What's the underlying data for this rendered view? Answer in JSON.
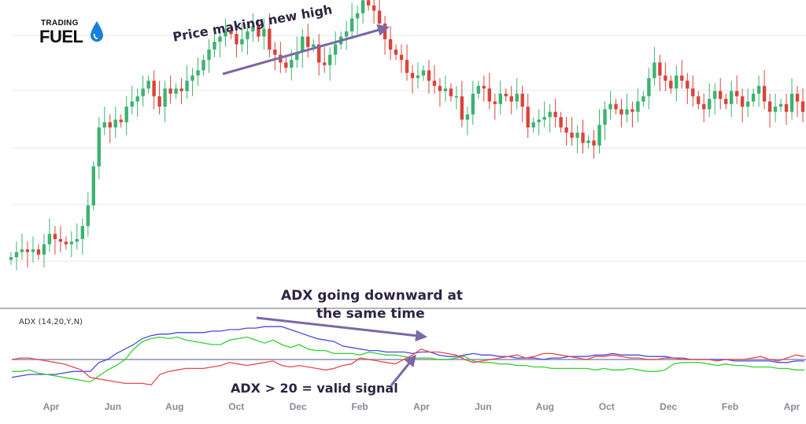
{
  "logo": {
    "line1": "TRADING",
    "line2": "FUEL",
    "icon": "water-drop-icon"
  },
  "annotations": {
    "price": "Price making new high",
    "adx_line1": "ADX going downward at",
    "adx_line2": "the same time",
    "valid": "ADX > 20 = valid signal"
  },
  "colors": {
    "up": "#3cb371",
    "down": "#d9443b",
    "adx": "#4a4ae0",
    "plus_di": "#e84a4a",
    "minus_di": "#33d133",
    "threshold": "#8c8cb3",
    "arrow": "#7b68a6"
  },
  "chart_data": [
    {
      "type": "candlestick",
      "title": "",
      "x_ticks": [
        "Apr",
        "Jun",
        "Aug",
        "Oct",
        "Dec",
        "Feb",
        "Apr",
        "Jun",
        "Aug",
        "Oct",
        "Dec",
        "Feb",
        "Apr"
      ],
      "y_range": [
        0,
        100
      ],
      "grid": true,
      "close": [
        10,
        12,
        13,
        12,
        13,
        11,
        15,
        19,
        17,
        16,
        15,
        16,
        17,
        22,
        30,
        45,
        60,
        62,
        60,
        63,
        62,
        68,
        70,
        72,
        75,
        78,
        72,
        68,
        75,
        73,
        75,
        74,
        78,
        80,
        82,
        86,
        90,
        93,
        95,
        97,
        96,
        92,
        94,
        97,
        99,
        95,
        98,
        90,
        88,
        85,
        83,
        86,
        89,
        95,
        91,
        92,
        85,
        84,
        88,
        92,
        95,
        97,
        102,
        104,
        109,
        107,
        105,
        100,
        94,
        90,
        88,
        86,
        81,
        79,
        80,
        82,
        78,
        76,
        74,
        75,
        72,
        72,
        63,
        65,
        73,
        76,
        75,
        70,
        69,
        73,
        72,
        70,
        73,
        68,
        60,
        62,
        63,
        64,
        66,
        64,
        60,
        58,
        56,
        58,
        54,
        55,
        53,
        61,
        67,
        69,
        67,
        65,
        67,
        66,
        70,
        72,
        79,
        85,
        80,
        78,
        75,
        80,
        78,
        75,
        72,
        69,
        67,
        71,
        74,
        71,
        69,
        74,
        72,
        68,
        70,
        73,
        76,
        70,
        66,
        68,
        69,
        66,
        73,
        70,
        66
      ]
    },
    {
      "type": "line",
      "title": "",
      "label": "ADX (14,20,Y,N)",
      "threshold": 20,
      "y_range": [
        0,
        50
      ],
      "series": [
        {
          "values": [
            8,
            9,
            10,
            10,
            10,
            10,
            11,
            12,
            12,
            12,
            18,
            20,
            24,
            27,
            30,
            34,
            36,
            37,
            37,
            38,
            38,
            38,
            38,
            39,
            39,
            40,
            40,
            41,
            41,
            42,
            42,
            42,
            40,
            38,
            36,
            34,
            33,
            32,
            29,
            28,
            27,
            26,
            26,
            25,
            25,
            25,
            24,
            25,
            25,
            23,
            22,
            22,
            23,
            24,
            23,
            23,
            22,
            22,
            21,
            21,
            21,
            20,
            21,
            21,
            22,
            22,
            22,
            23,
            23,
            24,
            23,
            23,
            23,
            22,
            22,
            22,
            21,
            21,
            20,
            20,
            20,
            20,
            20,
            19,
            19,
            19,
            19,
            19,
            18,
            18,
            19,
            19
          ]
        },
        {
          "values": [
            12,
            12,
            13,
            11,
            10,
            9,
            8,
            7,
            6,
            5,
            9,
            13,
            16,
            20,
            27,
            32,
            34,
            35,
            34,
            35,
            33,
            32,
            31,
            30,
            30,
            33,
            34,
            35,
            33,
            31,
            33,
            30,
            28,
            30,
            27,
            26,
            26,
            24,
            24,
            24,
            23,
            25,
            24,
            23,
            23,
            22,
            21,
            21,
            21,
            20,
            20,
            21,
            22,
            19,
            18,
            18,
            17,
            17,
            16,
            16,
            15,
            15,
            14,
            14,
            14,
            14,
            14,
            13,
            14,
            13,
            13,
            14,
            13,
            12,
            12,
            13,
            17,
            18,
            18,
            18,
            17,
            16,
            17,
            16,
            16,
            15,
            15,
            15,
            14,
            14,
            13,
            13
          ]
        },
        {
          "values": [
            20,
            21,
            21,
            20,
            19,
            18,
            17,
            15,
            13,
            8,
            7,
            6,
            5,
            4,
            4,
            4,
            3,
            10,
            12,
            13,
            14,
            14,
            14,
            15,
            16,
            18,
            17,
            16,
            17,
            18,
            19,
            16,
            15,
            16,
            15,
            14,
            13,
            14,
            16,
            17,
            21,
            20,
            19,
            18,
            17,
            20,
            23,
            27,
            25,
            25,
            24,
            23,
            20,
            18,
            19,
            20,
            21,
            22,
            23,
            21,
            22,
            24,
            24,
            23,
            22,
            21,
            20,
            22,
            22,
            23,
            22,
            21,
            21,
            20,
            20,
            21,
            21,
            20,
            20,
            20,
            20,
            19,
            20,
            20,
            20,
            21,
            22,
            20,
            19,
            21,
            23,
            22
          ]
        }
      ]
    }
  ]
}
